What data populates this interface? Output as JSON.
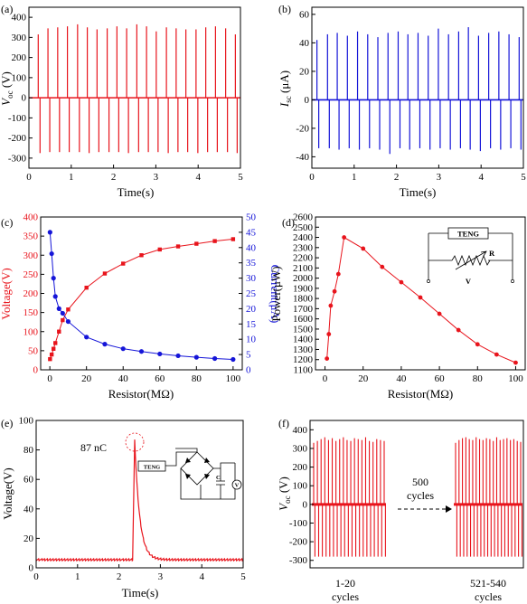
{
  "panels": {
    "a": {
      "letter": "(a)",
      "xlabel": "Time(s)",
      "ylabel_main": "V",
      "ylabel_sub": "oc",
      "ylabel_unit": " (V)"
    },
    "b": {
      "letter": "(b)",
      "xlabel": "Time(s)",
      "ylabel_main": "I",
      "ylabel_sub": "sc",
      "ylabel_unit": " (μA)"
    },
    "c": {
      "letter": "(c)",
      "xlabel": "Resistor(MΩ)",
      "ylabel_left": "Voltage(V)",
      "ylabel_right": "Current(μA)"
    },
    "d": {
      "letter": "(d)",
      "xlabel": "Resistor(MΩ)",
      "ylabel": "Power(μW)",
      "inset_teng": "TENG",
      "inset_r": "R",
      "inset_v": "V"
    },
    "e": {
      "letter": "(e)",
      "xlabel": "Time(s)",
      "ylabel": "Voltage(V)",
      "annotation": "87 nC",
      "inset_teng": "TENG",
      "inset_c": "C",
      "inset_v": "V"
    },
    "f": {
      "letter": "(f)",
      "ylabel_main": "V",
      "ylabel_sub": "oc",
      "ylabel_unit": " (V)",
      "mid_line1": "500",
      "mid_line2": "cycles",
      "left_line1": "1-20",
      "left_line2": "cycles",
      "right_line1": "521-540",
      "right_line2": "cycles"
    }
  },
  "colors": {
    "red": "#e8141c",
    "blue": "#1515d8",
    "axis": "#000000"
  },
  "chart_data": [
    {
      "panel": "a",
      "type": "line",
      "xlim": [
        0,
        5
      ],
      "ylim": [
        -350,
        450
      ],
      "xticks": [
        0,
        1,
        2,
        3,
        4,
        5
      ],
      "yticks": [
        -300,
        -200,
        -100,
        0,
        100,
        200,
        300,
        400
      ],
      "baseline": 0,
      "pulse_times": [
        0.22,
        0.45,
        0.68,
        0.91,
        1.15,
        1.38,
        1.61,
        1.85,
        2.08,
        2.31,
        2.55,
        2.78,
        3.01,
        3.25,
        3.48,
        3.71,
        3.95,
        4.18,
        4.41,
        4.65,
        4.88
      ],
      "pulse_peaks": [
        315,
        345,
        350,
        355,
        365,
        350,
        340,
        345,
        355,
        345,
        365,
        355,
        330,
        350,
        345,
        340,
        340,
        350,
        355,
        345,
        315
      ],
      "pulse_troughs": [
        -275,
        -270,
        -270,
        -270,
        -270,
        -275,
        -270,
        -270,
        -270,
        -275,
        -270,
        -270,
        -270,
        -275,
        -270,
        -270,
        -275,
        -270,
        -270,
        -270,
        -275
      ]
    },
    {
      "panel": "b",
      "type": "line",
      "xlim": [
        0,
        5
      ],
      "ylim": [
        -48,
        65
      ],
      "xticks": [
        0,
        1,
        2,
        3,
        4,
        5
      ],
      "yticks": [
        -40,
        -20,
        0,
        20,
        40,
        60
      ],
      "baseline": 0,
      "pulse_times": [
        0.12,
        0.37,
        0.6,
        0.84,
        1.08,
        1.32,
        1.56,
        1.8,
        2.04,
        2.27,
        2.51,
        2.75,
        2.99,
        3.23,
        3.47,
        3.7,
        3.94,
        4.18,
        4.42,
        4.66,
        4.9
      ],
      "pulse_peaks": [
        42,
        46,
        47,
        45,
        48,
        46,
        44,
        47,
        48,
        46,
        47,
        45,
        50,
        46,
        48,
        51,
        45,
        47,
        48,
        46,
        44
      ],
      "pulse_troughs": [
        -34,
        -34,
        -35,
        -34,
        -35,
        -34,
        -35,
        -38,
        -34,
        -35,
        -34,
        -35,
        -34,
        -35,
        -34,
        -35,
        -36,
        -34,
        -35,
        -34,
        -35
      ]
    },
    {
      "panel": "c",
      "type": "line",
      "xlim": [
        -5,
        105
      ],
      "xticks": [
        0,
        20,
        40,
        60,
        80,
        100
      ],
      "ylim": [
        0,
        400
      ],
      "yticks": [
        0,
        50,
        100,
        150,
        200,
        250,
        300,
        350,
        400
      ],
      "ylim_right": [
        0,
        50
      ],
      "yticks_right": [
        0,
        5,
        10,
        15,
        20,
        25,
        30,
        35,
        40,
        45,
        50
      ],
      "x": [
        0.1,
        1,
        2,
        3,
        5,
        7,
        10,
        20,
        30,
        40,
        50,
        60,
        70,
        80,
        90,
        100
      ],
      "series": [
        {
          "axis": "left",
          "values": [
            28,
            40,
            55,
            70,
            100,
            130,
            158,
            215,
            252,
            278,
            300,
            315,
            323,
            330,
            337,
            342
          ]
        },
        {
          "axis": "right",
          "values": [
            45,
            38,
            30,
            24,
            20,
            18.5,
            15.8,
            10.7,
            8.4,
            6.9,
            6,
            5.2,
            4.6,
            4.1,
            3.7,
            3.4
          ]
        }
      ]
    },
    {
      "panel": "d",
      "type": "line",
      "xlim": [
        -5,
        105
      ],
      "xticks": [
        0,
        20,
        40,
        60,
        80,
        100
      ],
      "ylim": [
        1100,
        2600
      ],
      "yticks": [
        1100,
        1200,
        1300,
        1400,
        1500,
        1600,
        1700,
        1800,
        1900,
        2000,
        2100,
        2200,
        2300,
        2400,
        2500,
        2600
      ],
      "x": [
        1,
        2,
        3,
        5,
        7,
        10,
        20,
        30,
        40,
        50,
        60,
        70,
        80,
        90,
        100
      ],
      "values": [
        1210,
        1450,
        1730,
        1870,
        2040,
        2400,
        2290,
        2110,
        1960,
        1810,
        1650,
        1490,
        1350,
        1250,
        1170
      ]
    },
    {
      "panel": "e",
      "type": "line",
      "xlim": [
        0,
        5
      ],
      "xticks": [
        0,
        1,
        2,
        3,
        4,
        5
      ],
      "ylim": [
        0,
        100
      ],
      "yticks": [
        0,
        20,
        40,
        60,
        80,
        100
      ],
      "baseline": 5.5,
      "peak_x": 2.38,
      "peak_y": 87,
      "rise_start_x": 2.33
    },
    {
      "panel": "f",
      "type": "line",
      "ylim": [
        -340,
        450
      ],
      "yticks": [
        -300,
        -200,
        -100,
        0,
        100,
        200,
        300,
        400
      ],
      "segment_pulses": 20,
      "left_peaks": [
        330,
        340,
        350,
        360,
        345,
        355,
        340,
        350,
        360,
        345,
        340,
        355,
        350,
        345,
        360,
        340,
        335,
        350,
        345,
        340
      ],
      "right_peaks": [
        330,
        345,
        355,
        360,
        350,
        345,
        360,
        350,
        345,
        355,
        350,
        340,
        360,
        345,
        350,
        355,
        345,
        350,
        340,
        335
      ],
      "trough": -280
    }
  ]
}
